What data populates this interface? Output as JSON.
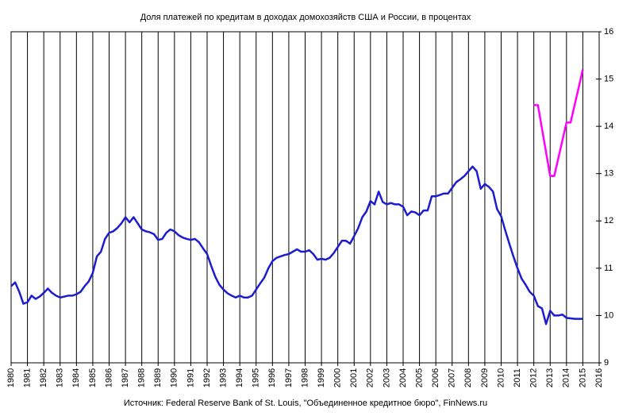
{
  "chart_data": {
    "type": "line",
    "title": "Доля платежей по кредитам в доходах домохозяйств США и России, в процентах",
    "source": "Источник: Federal Reserve Bank of St. Louis, \"Объединенное кредитное бюро\", FinNews.ru",
    "xlim": [
      1980,
      2016
    ],
    "xticks": [
      1980,
      1981,
      1982,
      1983,
      1984,
      1985,
      1986,
      1987,
      1988,
      1989,
      1990,
      1991,
      1992,
      1993,
      1994,
      1995,
      1996,
      1997,
      1998,
      1999,
      2000,
      2001,
      2002,
      2003,
      2004,
      2005,
      2006,
      2007,
      2008,
      2009,
      2010,
      2011,
      2012,
      2013,
      2014,
      2015,
      2016
    ],
    "ylim": [
      9,
      16
    ],
    "yticks": [
      9,
      10,
      11,
      12,
      13,
      14,
      15,
      16
    ],
    "grid": "x",
    "series": [
      {
        "color": "#1c1cd0",
        "x": [
          1980,
          1980.25,
          1980.5,
          1980.75,
          1981,
          1981.25,
          1981.5,
          1981.75,
          1982,
          1982.25,
          1982.5,
          1982.75,
          1983,
          1983.25,
          1983.5,
          1983.75,
          1984,
          1984.25,
          1984.5,
          1984.75,
          1985,
          1985.25,
          1985.5,
          1985.75,
          1986,
          1986.25,
          1986.5,
          1986.75,
          1987,
          1987.25,
          1987.5,
          1987.75,
          1988,
          1988.25,
          1988.5,
          1988.75,
          1989,
          1989.25,
          1989.5,
          1989.75,
          1990,
          1990.25,
          1990.5,
          1990.75,
          1991,
          1991.25,
          1991.5,
          1991.75,
          1992,
          1992.25,
          1992.5,
          1992.75,
          1993,
          1993.25,
          1993.5,
          1993.75,
          1994,
          1994.25,
          1994.5,
          1994.75,
          1995,
          1995.25,
          1995.5,
          1995.75,
          1996,
          1996.25,
          1996.5,
          1996.75,
          1997,
          1997.25,
          1997.5,
          1997.75,
          1998,
          1998.25,
          1998.5,
          1998.75,
          1999,
          1999.25,
          1999.5,
          1999.75,
          2000,
          2000.25,
          2000.5,
          2000.75,
          2001,
          2001.25,
          2001.5,
          2001.75,
          2002,
          2002.25,
          2002.5,
          2002.75,
          2003,
          2003.25,
          2003.5,
          2003.75,
          2004,
          2004.25,
          2004.5,
          2004.75,
          2005,
          2005.25,
          2005.5,
          2005.75,
          2006,
          2006.25,
          2006.5,
          2006.75,
          2007,
          2007.25,
          2007.5,
          2007.75,
          2008,
          2008.25,
          2008.5,
          2008.75,
          2009,
          2009.25,
          2009.5,
          2009.75,
          2010,
          2010.25,
          2010.5,
          2010.75,
          2011,
          2011.25,
          2011.5,
          2011.75,
          2012,
          2012.25,
          2012.5,
          2012.75,
          2013,
          2013.25,
          2013.5,
          2013.75,
          2014,
          2014.25,
          2014.5,
          2014.75,
          2015
        ],
        "values": [
          10.62,
          10.7,
          10.5,
          10.25,
          10.28,
          10.42,
          10.35,
          10.4,
          10.48,
          10.57,
          10.48,
          10.42,
          10.38,
          10.4,
          10.42,
          10.42,
          10.45,
          10.5,
          10.62,
          10.72,
          10.9,
          11.25,
          11.35,
          11.62,
          11.75,
          11.78,
          11.85,
          11.95,
          12.08,
          11.97,
          12.08,
          11.95,
          11.82,
          11.78,
          11.76,
          11.72,
          11.6,
          11.62,
          11.75,
          11.82,
          11.78,
          11.7,
          11.65,
          11.62,
          11.6,
          11.62,
          11.55,
          11.42,
          11.3,
          11.05,
          10.82,
          10.65,
          10.55,
          10.47,
          10.42,
          10.38,
          10.42,
          10.38,
          10.38,
          10.42,
          10.55,
          10.68,
          10.8,
          11.0,
          11.15,
          11.22,
          11.25,
          11.28,
          11.3,
          11.35,
          11.4,
          11.35,
          11.35,
          11.38,
          11.3,
          11.18,
          11.2,
          11.18,
          11.22,
          11.32,
          11.45,
          11.58,
          11.58,
          11.52,
          11.68,
          11.85,
          12.08,
          12.2,
          12.42,
          12.35,
          12.62,
          12.4,
          12.35,
          12.38,
          12.35,
          12.35,
          12.3,
          12.12,
          12.2,
          12.18,
          12.12,
          12.22,
          12.22,
          12.52,
          12.52,
          12.55,
          12.58,
          12.58,
          12.7,
          12.82,
          12.88,
          12.95,
          13.05,
          13.15,
          13.05,
          12.68,
          12.78,
          12.72,
          12.62,
          12.25,
          12.1,
          11.8,
          11.52,
          11.25,
          11.0,
          10.78,
          10.65,
          10.5,
          10.42,
          10.2,
          10.15,
          9.82,
          10.1,
          10.0,
          10.0,
          10.02,
          9.95,
          9.94,
          9.93,
          9.93,
          9.93
        ]
      },
      {
        "color": "#ff00ff",
        "x": [
          2012,
          2012.25,
          2013,
          2013.25,
          2014,
          2014.25,
          2015
        ],
        "values": [
          14.45,
          14.45,
          12.95,
          12.95,
          14.08,
          14.08,
          15.2
        ]
      }
    ]
  }
}
